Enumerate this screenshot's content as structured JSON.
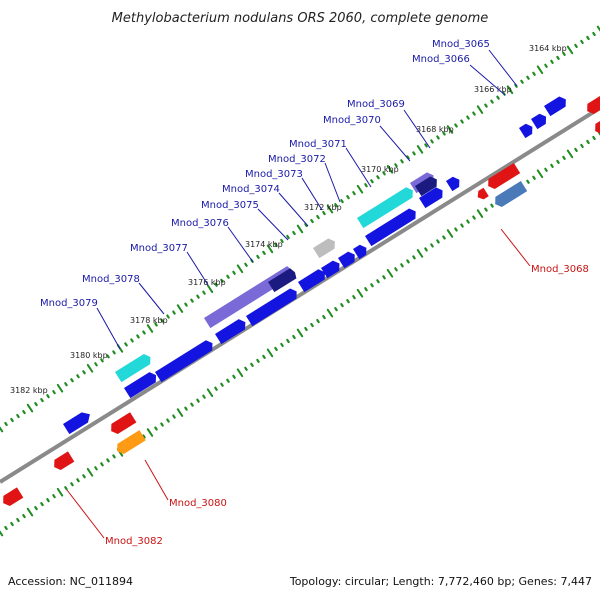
{
  "title": "Methylobacterium nodulans ORS 2060, complete genome",
  "footer": {
    "accession": "Accession: NC_011894",
    "summary": "Topology: circular; Length: 7,772,460 bp; Genes: 7,447"
  },
  "colors": {
    "backbone": "#8a8a8a",
    "tick": "#1e8c1e",
    "forward_gene": "#1414e0",
    "reverse_gene": "#e01414",
    "cyan_gene": "#22d8d8",
    "purple_gene": "#7a6ad8",
    "navy_gene": "#1a1a80",
    "gray_gene": "#bdbdbd",
    "orange_gene": "#ff9a14",
    "steel_gene": "#4a7ab8",
    "forward_label": "#1a1aa8",
    "reverse_label": "#c81414"
  },
  "kbp_labels": [
    "3164 kbp",
    "3166 kbp",
    "3168 kbp",
    "3170 kbp",
    "3172 kbp",
    "3174 kbp",
    "3176 kbp",
    "3178 kbp",
    "3180 kbp",
    "3182 kbp"
  ],
  "forward_gene_labels": [
    "Mnod_3065",
    "Mnod_3066",
    "Mnod_3069",
    "Mnod_3070",
    "Mnod_3071",
    "Mnod_3072",
    "Mnod_3073",
    "Mnod_3074",
    "Mnod_3075",
    "Mnod_3076",
    "Mnod_3077",
    "Mnod_3078",
    "Mnod_3079"
  ],
  "reverse_gene_labels": [
    "Mnod_3068",
    "Mnod_3080",
    "Mnod_3082"
  ]
}
